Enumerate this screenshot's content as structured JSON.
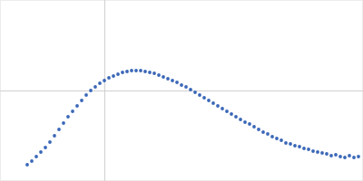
{
  "chart_data": {
    "type": "scatter",
    "color": "#3a67b8",
    "marker": "circle",
    "grid": true,
    "tick_labels": false,
    "xlim": [
      0,
      4
    ],
    "ylim": [
      0,
      2
    ],
    "xticks": [
      1.15
    ],
    "yticks": [
      1.0
    ],
    "x": [
      0.3,
      0.35,
      0.4,
      0.45,
      0.5,
      0.55,
      0.6,
      0.65,
      0.7,
      0.75,
      0.8,
      0.85,
      0.9,
      0.95,
      1.0,
      1.05,
      1.1,
      1.15,
      1.2,
      1.25,
      1.3,
      1.35,
      1.4,
      1.45,
      1.5,
      1.55,
      1.6,
      1.65,
      1.7,
      1.75,
      1.8,
      1.85,
      1.9,
      1.95,
      2.0,
      2.05,
      2.1,
      2.15,
      2.2,
      2.25,
      2.3,
      2.35,
      2.4,
      2.45,
      2.5,
      2.55,
      2.6,
      2.65,
      2.7,
      2.75,
      2.8,
      2.85,
      2.9,
      2.95,
      3.0,
      3.05,
      3.1,
      3.15,
      3.2,
      3.25,
      3.3,
      3.35,
      3.4,
      3.45,
      3.5,
      3.55,
      3.6,
      3.65,
      3.7,
      3.75,
      3.8,
      3.85,
      3.9,
      3.95
    ],
    "values": [
      0.18,
      0.22,
      0.27,
      0.32,
      0.37,
      0.43,
      0.5,
      0.57,
      0.64,
      0.71,
      0.77,
      0.83,
      0.89,
      0.95,
      1.0,
      1.04,
      1.08,
      1.11,
      1.14,
      1.16,
      1.18,
      1.2,
      1.21,
      1.22,
      1.22,
      1.22,
      1.21,
      1.2,
      1.19,
      1.17,
      1.15,
      1.13,
      1.11,
      1.09,
      1.06,
      1.04,
      1.01,
      0.98,
      0.95,
      0.92,
      0.89,
      0.86,
      0.83,
      0.8,
      0.77,
      0.74,
      0.71,
      0.68,
      0.65,
      0.63,
      0.6,
      0.57,
      0.54,
      0.52,
      0.49,
      0.47,
      0.45,
      0.42,
      0.41,
      0.39,
      0.38,
      0.36,
      0.35,
      0.33,
      0.32,
      0.31,
      0.3,
      0.28,
      0.29,
      0.27,
      0.26,
      0.28,
      0.26,
      0.27
    ]
  }
}
